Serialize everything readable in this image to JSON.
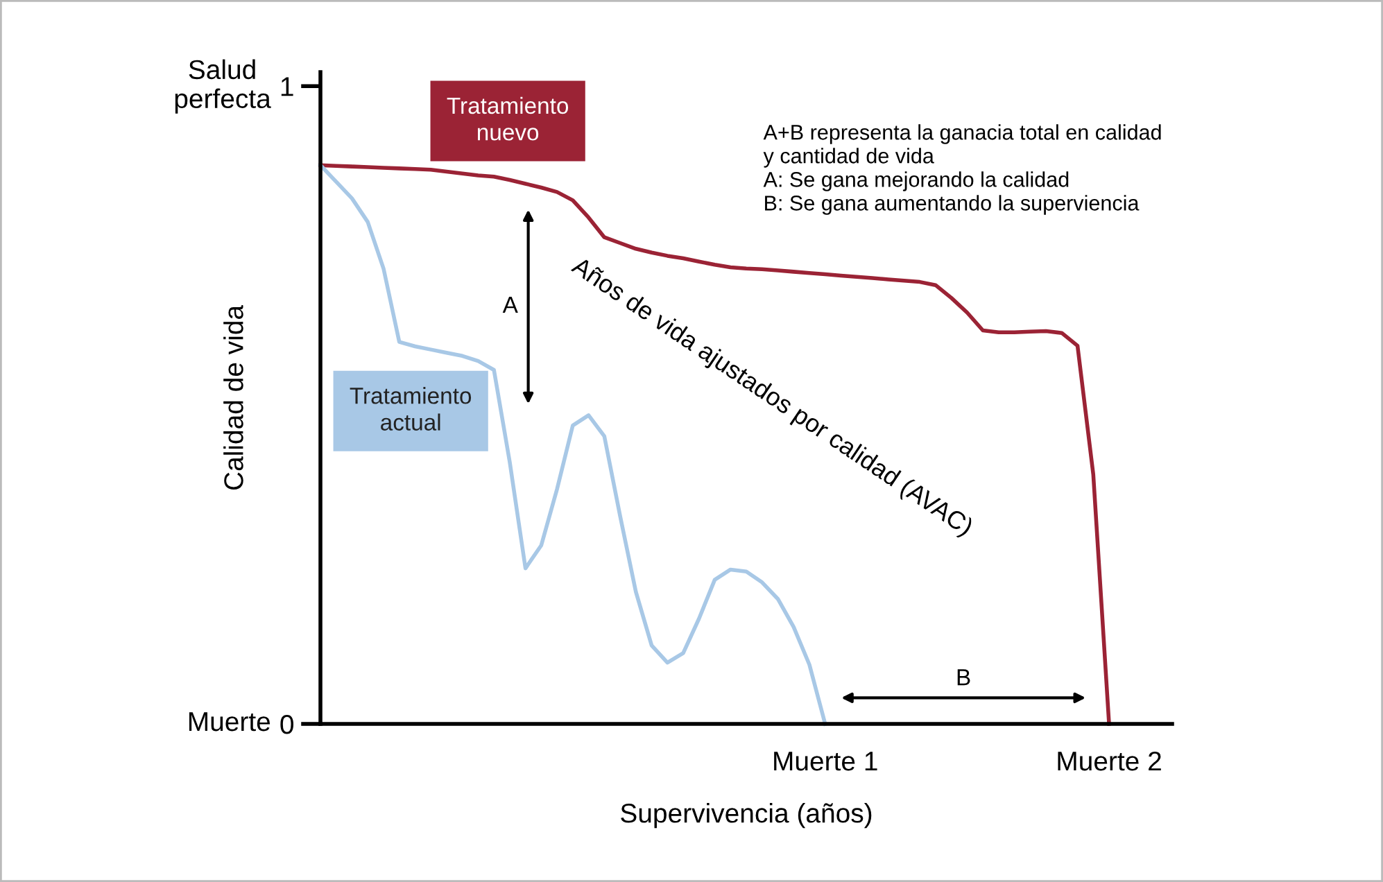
{
  "chart_data": {
    "type": "line",
    "xlabel": "Supervivencia (años)",
    "ylabel": "Calidad de vida",
    "categories": [
      null,
      null,
      null,
      null,
      null,
      null,
      null,
      null,
      null,
      null,
      null,
      null,
      null,
      null,
      null,
      null,
      null,
      null,
      null,
      null,
      null,
      null,
      null,
      null,
      null,
      null,
      null,
      null,
      null,
      null,
      null,
      null,
      "Muerte 1",
      null,
      null,
      null,
      null,
      null,
      null,
      null,
      null,
      null,
      null,
      null,
      null,
      null,
      null,
      null,
      null,
      null,
      "Muerte 2",
      null,
      null,
      null,
      null
    ],
    "ylim": [
      0,
      1.022
    ],
    "yticks": [
      0,
      1
    ],
    "grid": false,
    "legend": false,
    "marker": "none",
    "line_style": "solid",
    "series": [
      {
        "name": "Tratamiento nuevo",
        "color": "#9b2335",
        "values": [
          0.876,
          0.875,
          0.874,
          0.873,
          0.872,
          0.871,
          0.87,
          0.869,
          0.866,
          0.863,
          0.86,
          0.858,
          0.853,
          0.847,
          0.841,
          0.834,
          0.821,
          0.794,
          0.763,
          0.754,
          0.745,
          0.739,
          0.734,
          0.73,
          0.725,
          0.72,
          0.716,
          0.714,
          0.713,
          0.711,
          0.709,
          0.707,
          0.705,
          0.703,
          0.701,
          0.699,
          0.697,
          0.695,
          0.693,
          0.688,
          0.668,
          0.645,
          0.617,
          0.614,
          0.614,
          0.615,
          0.616,
          0.613,
          0.593,
          0.391,
          0,
          null,
          null,
          null,
          null
        ]
      },
      {
        "name": "Tratamiento actual",
        "color": "#a8c8e6",
        "values": [
          0.876,
          0.85,
          0.824,
          0.787,
          0.714,
          0.599,
          0.592,
          0.587,
          0.582,
          0.577,
          0.569,
          0.555,
          0.411,
          0.244,
          0.28,
          0.368,
          0.468,
          0.484,
          0.451,
          0.326,
          0.207,
          0.123,
          0.096,
          0.111,
          0.165,
          0.226,
          0.242,
          0.239,
          0.222,
          0.196,
          0.152,
          0.093,
          0,
          null,
          null,
          null,
          null,
          null,
          null,
          null,
          null,
          null,
          null,
          null,
          null,
          null,
          null,
          null,
          null,
          null,
          null,
          null,
          null,
          null,
          null
        ]
      }
    ],
    "annotations": [
      "A+B representa la ganacia total en calidad\ny cantidad de vida\nA: Se gana mejorando la calidad\nB: Se gana aumentando la superviencia",
      "Años de vida ajustados por calidad (AVAC)",
      "A",
      "B",
      "Salud\nperfecta",
      "Muerte"
    ]
  }
}
